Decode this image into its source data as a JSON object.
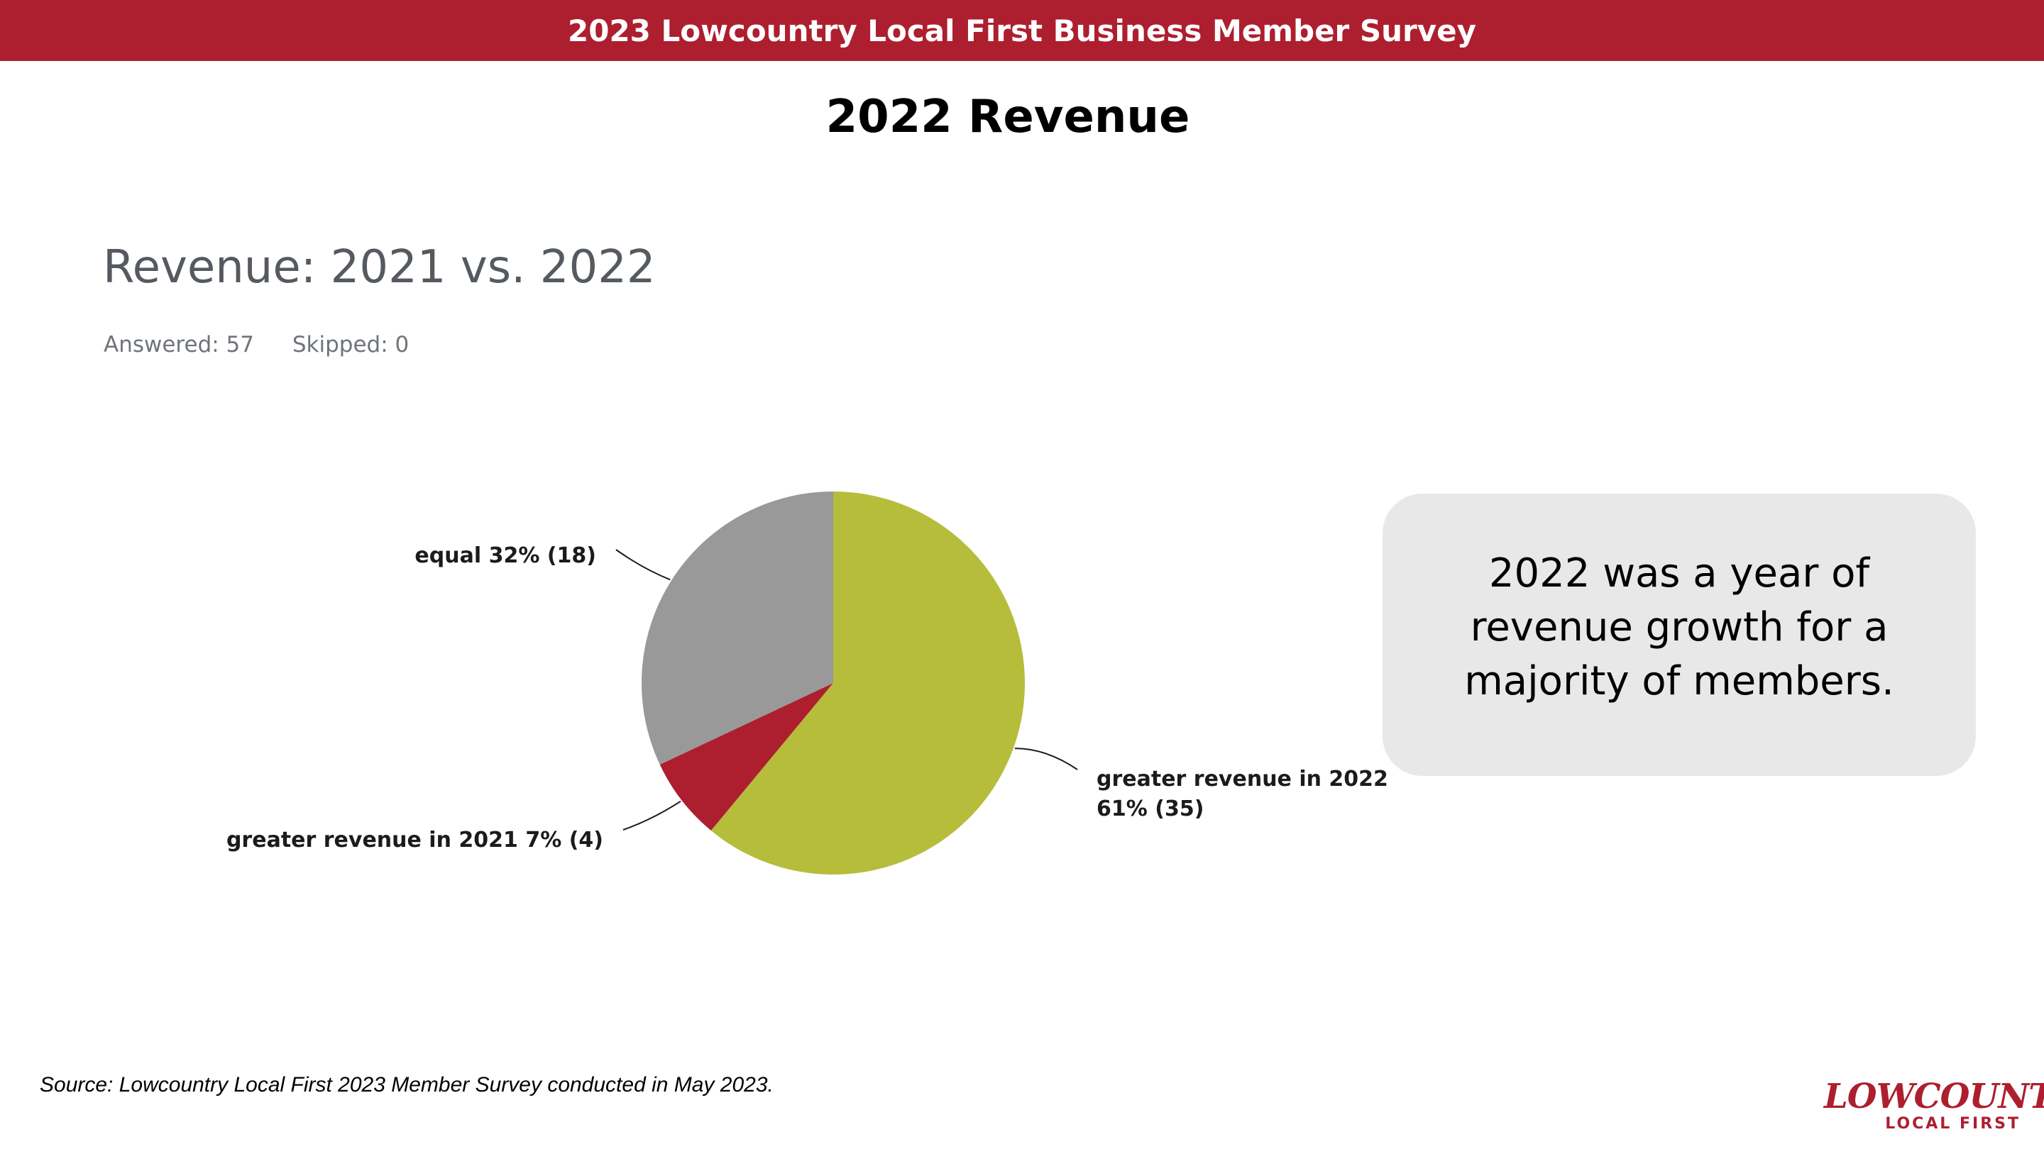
{
  "header": {
    "banner_title": "2023 Lowcountry Local First Business Member Survey"
  },
  "slide": {
    "title": "2022 Revenue"
  },
  "survey": {
    "answered": "Answered: 57",
    "skipped": "Skipped: 0"
  },
  "chart_data": {
    "type": "pie",
    "title": "Revenue: 2021 vs. 2022",
    "slices": [
      {
        "label": "greater revenue in 2022",
        "percent": 61,
        "count": 35,
        "display": "61% (35)",
        "color": "#b5bd3b"
      },
      {
        "label": "greater revenue in 2021",
        "percent": 7,
        "count": 4,
        "display": "7% (4)",
        "color": "#ad1f2f"
      },
      {
        "label": "equal",
        "percent": 32,
        "count": 18,
        "display": "32% (18)",
        "color": "#999999"
      }
    ]
  },
  "callout": {
    "text": "2022 was a year of revenue growth for a majority of members."
  },
  "footer": {
    "source": "Source: Lowcountry Local First 2023 Member Survey conducted in May 2023."
  },
  "logo": {
    "line1": "LOWCOUNTRY",
    "line2": "LOCAL FIRST"
  }
}
